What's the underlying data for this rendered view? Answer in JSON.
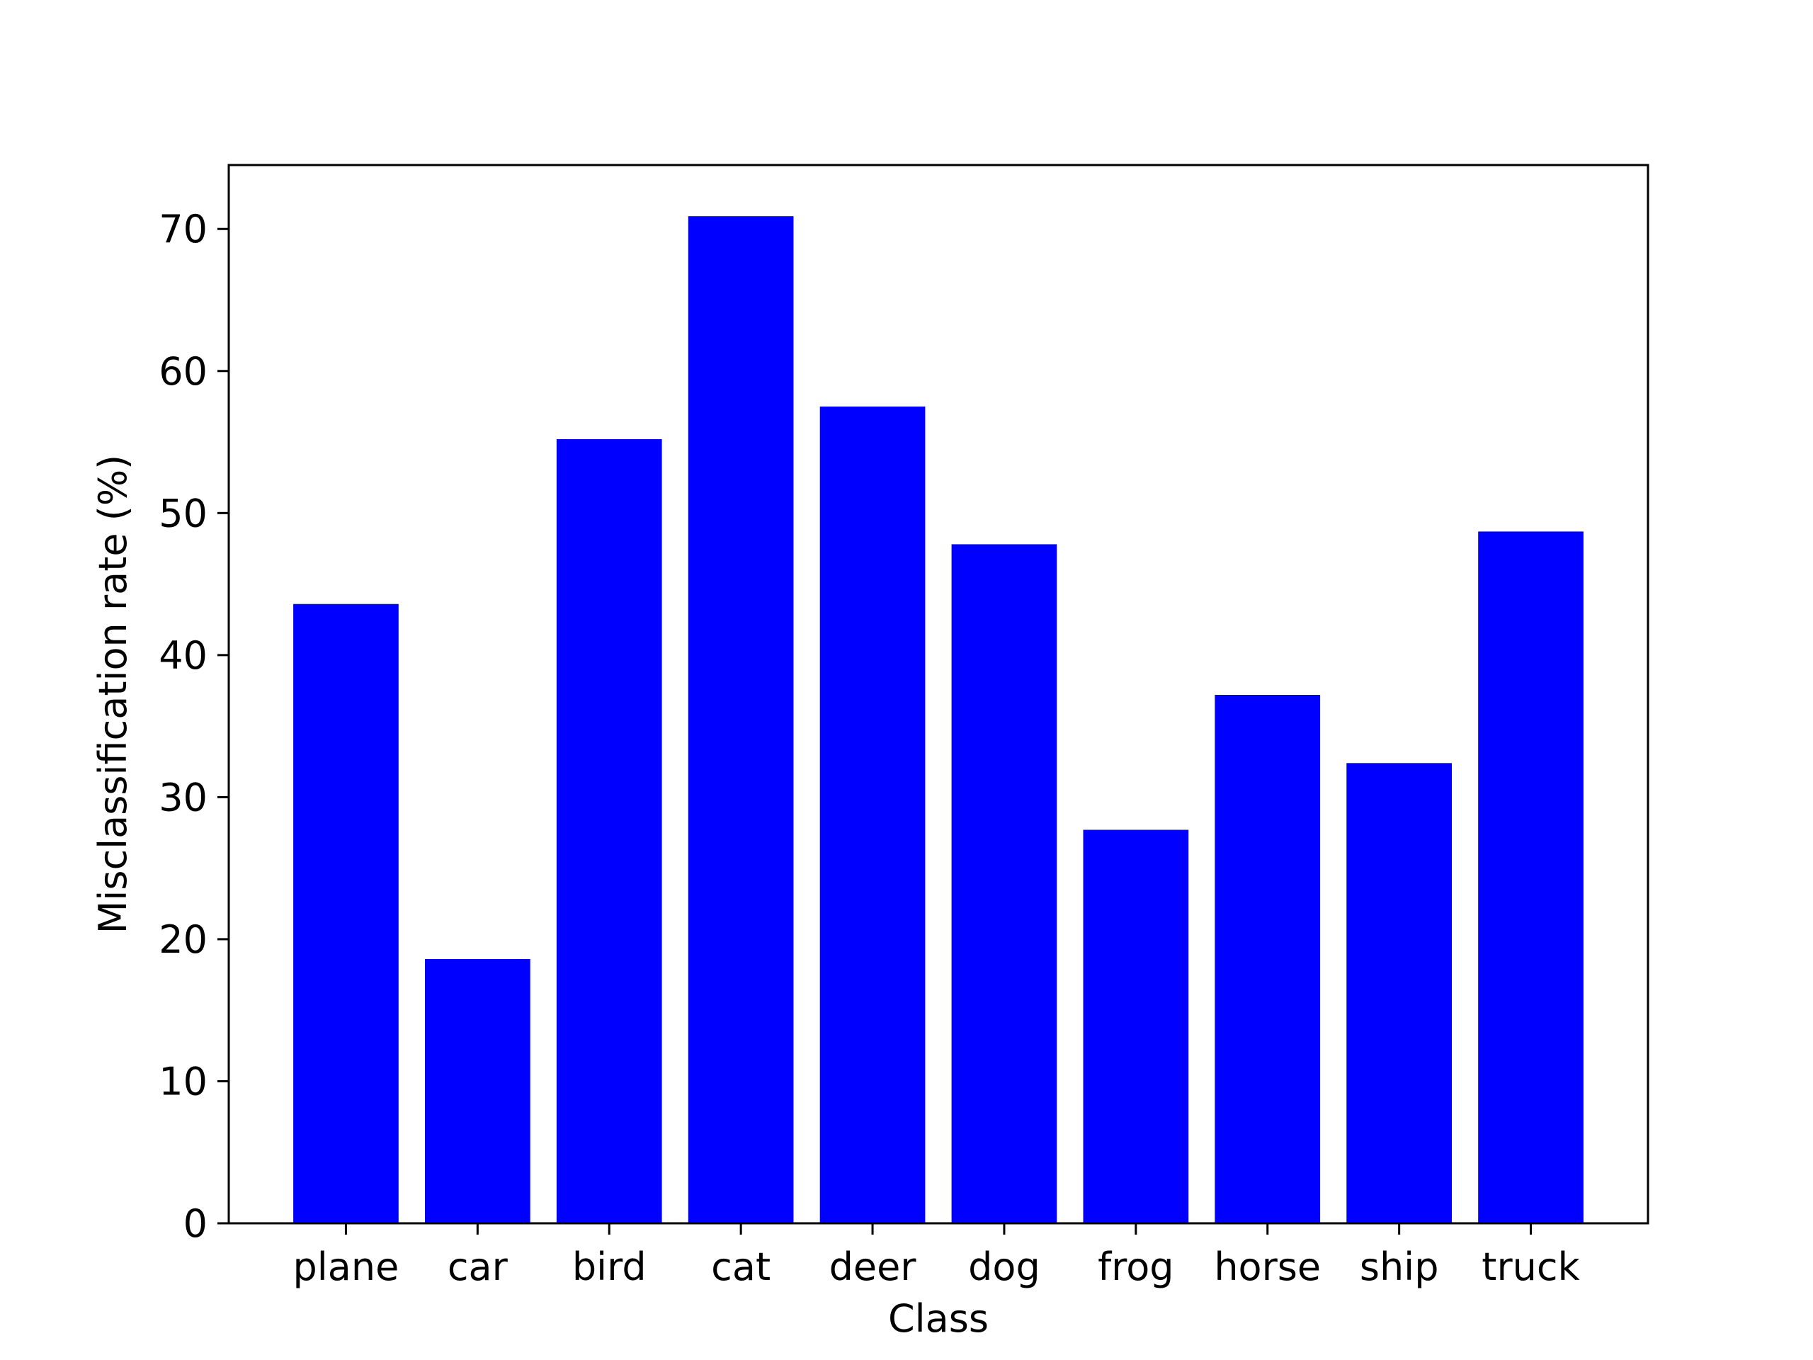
{
  "chart_data": {
    "type": "bar",
    "title": "",
    "xlabel": "Class",
    "ylabel": "Misclassification rate (%)",
    "categories": [
      "plane",
      "car",
      "bird",
      "cat",
      "deer",
      "dog",
      "frog",
      "horse",
      "ship",
      "truck"
    ],
    "values": [
      43.6,
      18.6,
      55.2,
      70.9,
      57.5,
      47.8,
      27.7,
      37.2,
      32.4,
      48.7
    ],
    "ylim": [
      0,
      74.5
    ],
    "yticks": [
      "0",
      "10",
      "20",
      "30",
      "40",
      "50",
      "60",
      "70"
    ],
    "bar_color": "#0000ff",
    "grid": false,
    "legend": "none"
  }
}
